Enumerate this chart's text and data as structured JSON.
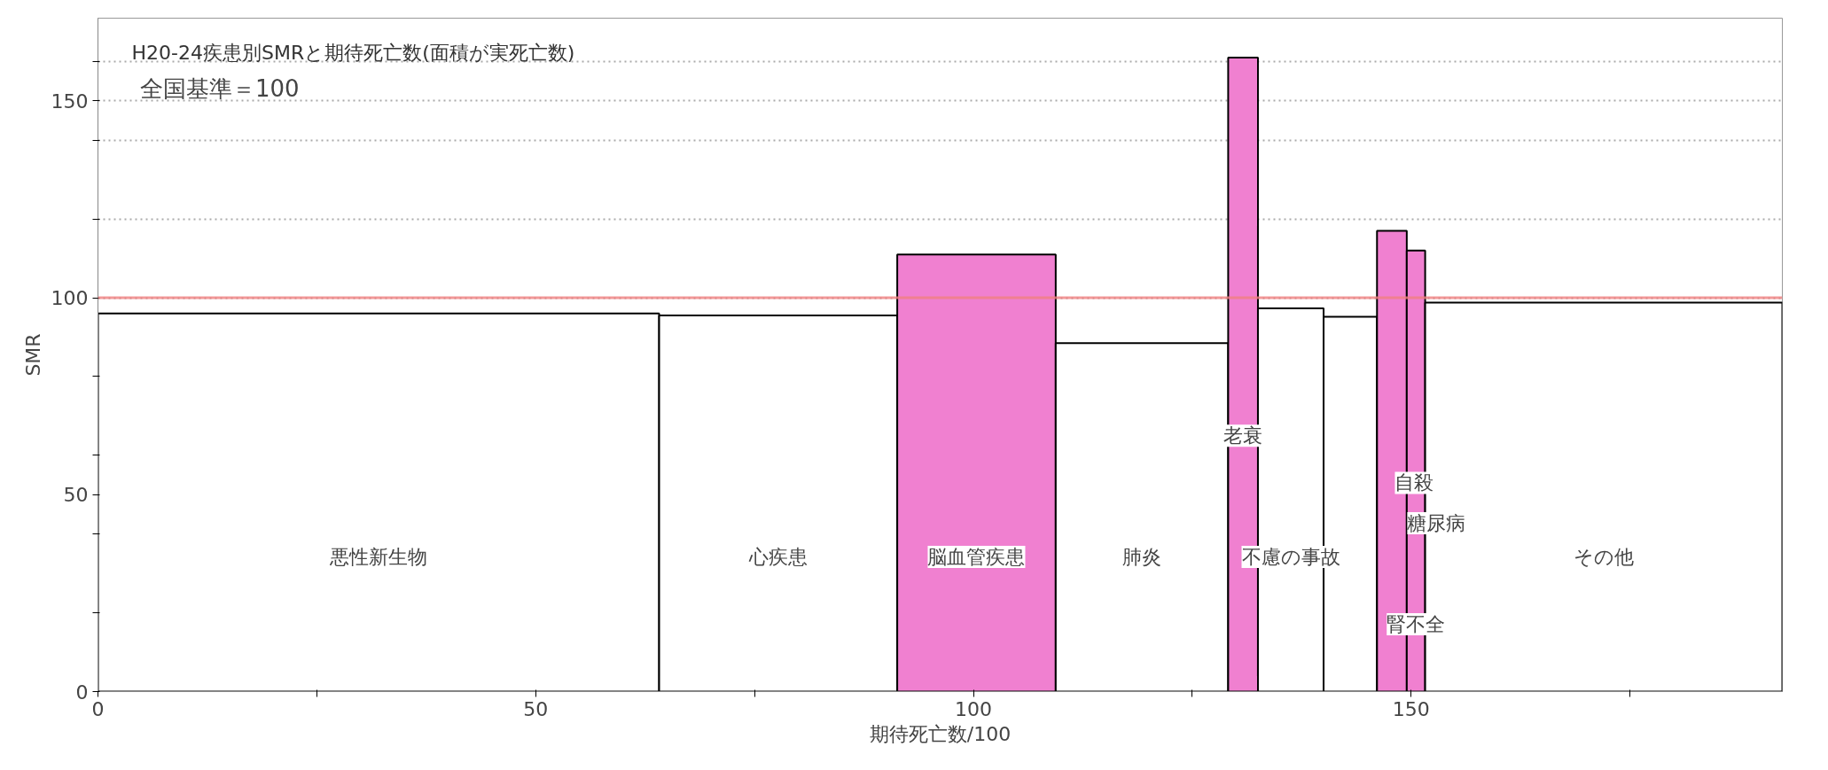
{
  "chart_data": {
    "type": "histogram",
    "title": "H20-24疾患別SMRと期待死亡数(面積が実死亡数)",
    "subtitle": "全国基準＝100",
    "xlabel": "期待死亡数/100",
    "ylabel": "SMR",
    "bins": [
      0,
      64.1,
      91.3,
      109.4,
      129.1,
      132.5,
      140.0,
      146.1,
      149.5,
      151.6,
      192.4
    ],
    "values": [
      96,
      95.5,
      111,
      88.5,
      161,
      97.3,
      95.2,
      117,
      112,
      98.8
    ],
    "colors": [
      "#ffffff",
      "#ffffff",
      "#f080d0",
      "#ffffff",
      "#f080d0",
      "#ffffff",
      "#ffffff",
      "#f080d0",
      "#f080d0",
      "#ffffff"
    ],
    "annotations": [
      "悪性新生物",
      "心疾患",
      "脳血管疾患",
      "肺炎",
      "老衰",
      "不慮の事故",
      "自殺",
      "糖尿病",
      "腎不全",
      "その他"
    ],
    "ref_lines": [
      {
        "axis": "y",
        "value": 100,
        "label": null,
        "color": "#f08080"
      }
    ],
    "xlim": [
      0,
      192.4
    ],
    "ylim": [
      0,
      171
    ],
    "xticks": [
      0,
      {
        "value": 25,
        "label": null
      },
      50,
      {
        "value": 75,
        "label": null
      },
      100,
      {
        "value": 125,
        "label": null
      },
      150,
      {
        "value": 175,
        "label": null
      }
    ],
    "yticks": [
      0,
      {
        "value": 20,
        "label": null
      },
      {
        "value": 40,
        "label": null
      },
      50,
      {
        "value": 60,
        "label": null
      },
      {
        "value": 80,
        "label": null
      },
      100,
      {
        "value": 120,
        "label": null
      },
      {
        "value": 140,
        "label": null
      },
      150,
      {
        "value": 160,
        "label": null
      }
    ],
    "grid": "y",
    "legend": false
  }
}
